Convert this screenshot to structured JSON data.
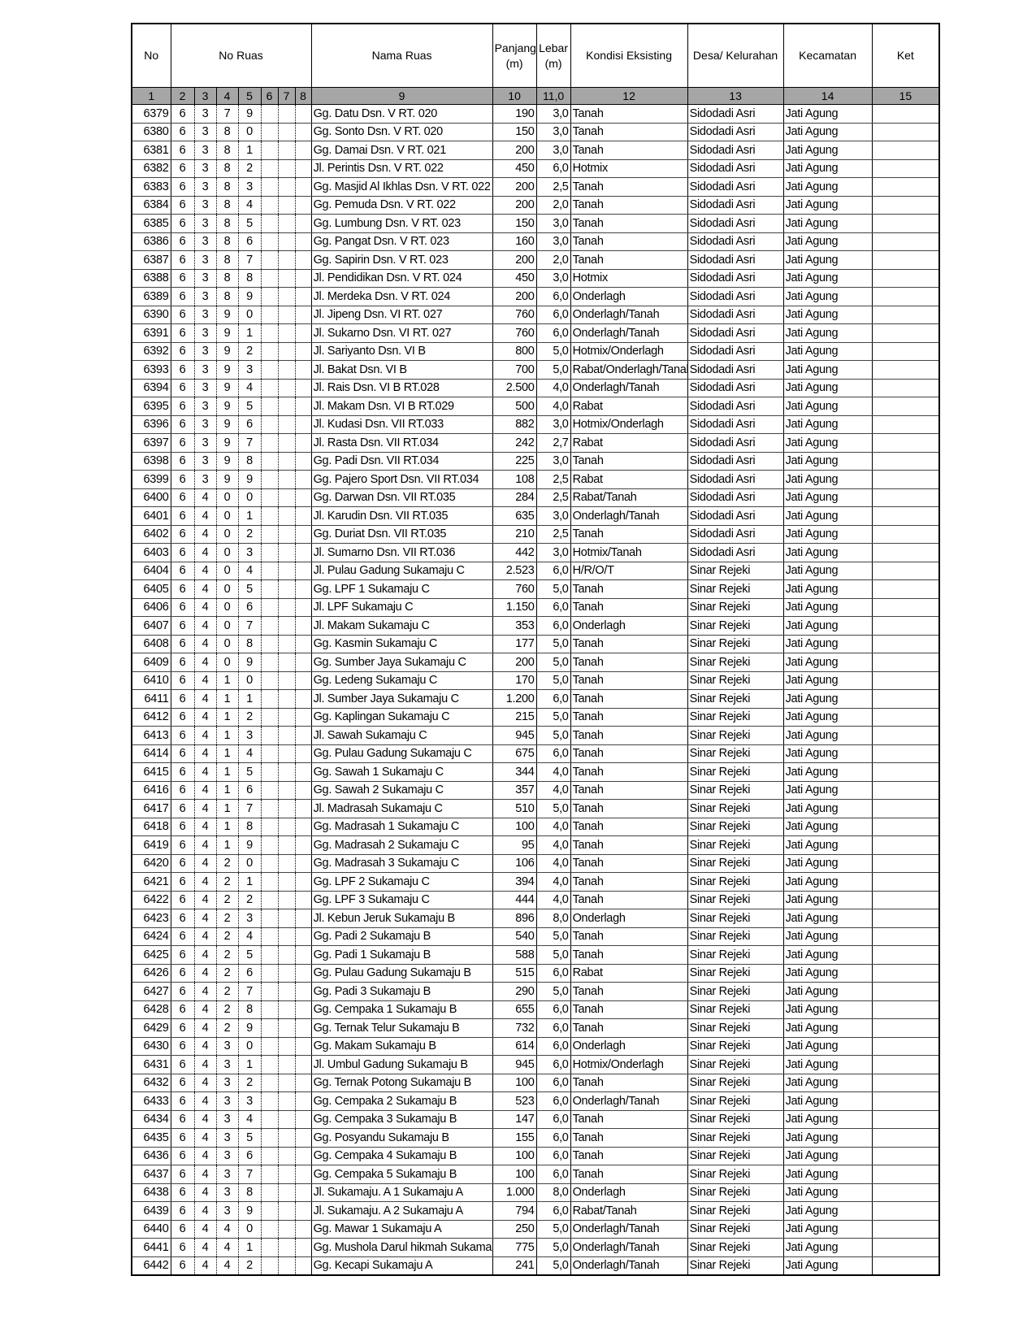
{
  "header": {
    "no": "No",
    "no_ruas": "No Ruas",
    "nama_ruas": "Nama Ruas",
    "panjang": "Panjang",
    "panjang_unit": "(m)",
    "lebar": "Lebar",
    "lebar_unit": "(m)",
    "kondisi": "Kondisi Eksisting",
    "desa": "Desa/ Kelurahan",
    "kecamatan": "Kecamatan",
    "ket": "Ket"
  },
  "column_numbers": [
    "1",
    "2",
    "3",
    "4",
    "5",
    "6",
    "7",
    "8",
    "9",
    "10",
    "11,0",
    "12",
    "13",
    "14",
    "15"
  ],
  "header_band_color": "#a6a6a6",
  "rows": [
    [
      "6379",
      "6379",
      "Gg. Datu  Dsn. V RT. 020",
      "190",
      "3,0",
      "Tanah",
      "Sidodadi Asri",
      "Jati Agung"
    ],
    [
      "6380",
      "6380",
      "Gg. Sonto  Dsn. V RT. 020",
      "150",
      "3,0",
      "Tanah",
      "Sidodadi Asri",
      "Jati Agung"
    ],
    [
      "6381",
      "6381",
      "Gg. Damai  Dsn. V RT. 021",
      "200",
      "3,0",
      "Tanah",
      "Sidodadi Asri",
      "Jati Agung"
    ],
    [
      "6382",
      "6382",
      "Jl. Perintis  Dsn. V RT. 022",
      "450",
      "6,0",
      "Hotmix",
      "Sidodadi Asri",
      "Jati Agung"
    ],
    [
      "6383",
      "6383",
      "Gg. Masjid Al Ikhlas  Dsn. V RT. 022",
      "200",
      "2,5",
      "Tanah",
      "Sidodadi Asri",
      "Jati Agung"
    ],
    [
      "6384",
      "6384",
      "Gg. Pemuda  Dsn. V RT. 022",
      "200",
      "2,0",
      "Tanah",
      "Sidodadi Asri",
      "Jati Agung"
    ],
    [
      "6385",
      "6385",
      "Gg. Lumbung  Dsn. V RT. 023",
      "150",
      "3,0",
      "Tanah",
      "Sidodadi Asri",
      "Jati Agung"
    ],
    [
      "6386",
      "6386",
      "Gg. Pangat  Dsn. V RT. 023",
      "160",
      "3,0",
      "Tanah",
      "Sidodadi Asri",
      "Jati Agung"
    ],
    [
      "6387",
      "6387",
      "Gg. Sapirin  Dsn. V RT. 023",
      "200",
      "2,0",
      "Tanah",
      "Sidodadi Asri",
      "Jati Agung"
    ],
    [
      "6388",
      "6388",
      "Jl. Pendidikan  Dsn. V RT. 024",
      "450",
      "3,0",
      "Hotmix",
      "Sidodadi Asri",
      "Jati Agung"
    ],
    [
      "6389",
      "6389",
      "Jl. Merdeka  Dsn. V RT. 024",
      "200",
      "6,0",
      "Onderlagh",
      "Sidodadi Asri",
      "Jati Agung"
    ],
    [
      "6390",
      "6390",
      "Jl. Jipeng  Dsn. VI RT. 027",
      "760",
      "6,0",
      "Onderlagh/Tanah",
      "Sidodadi Asri",
      "Jati Agung"
    ],
    [
      "6391",
      "6391",
      "Jl. Sukarno  Dsn. VI RT. 027",
      "760",
      "6,0",
      "Onderlagh/Tanah",
      "Sidodadi Asri",
      "Jati Agung"
    ],
    [
      "6392",
      "6392",
      "Jl. Sariyanto  Dsn. VI B",
      "800",
      "5,0",
      "Hotmix/Onderlagh",
      "Sidodadi Asri",
      "Jati Agung"
    ],
    [
      "6393",
      "6393",
      "Jl. Bakat  Dsn. VI B",
      "700",
      "5,0",
      "Rabat/Onderlagh/Tanah",
      "Sidodadi Asri",
      "Jati Agung"
    ],
    [
      "6394",
      "6394",
      "Jl. Rais  Dsn. VI B RT.028",
      "2.500",
      "4,0",
      "Onderlagh/Tanah",
      "Sidodadi Asri",
      "Jati Agung"
    ],
    [
      "6395",
      "6395",
      "Jl. Makam  Dsn. VI B RT.029",
      "500",
      "4,0",
      "Rabat",
      "Sidodadi Asri",
      "Jati Agung"
    ],
    [
      "6396",
      "6396",
      "Jl. Kudasi  Dsn. VII RT.033",
      "882",
      "3,0",
      "Hotmix/Onderlagh",
      "Sidodadi Asri",
      "Jati Agung"
    ],
    [
      "6397",
      "6397",
      "Jl. Rasta  Dsn. VII RT.034",
      "242",
      "2,7",
      "Rabat",
      "Sidodadi Asri",
      "Jati Agung"
    ],
    [
      "6398",
      "6398",
      "Gg. Padi  Dsn. VII RT.034",
      "225",
      "3,0",
      "Tanah",
      "Sidodadi Asri",
      "Jati Agung"
    ],
    [
      "6399",
      "6399",
      "Gg. Pajero Sport  Dsn. VII RT.034",
      "108",
      "2,5",
      "Rabat",
      "Sidodadi Asri",
      "Jati Agung"
    ],
    [
      "6400",
      "6400",
      "Gg. Darwan  Dsn. VII RT.035",
      "284",
      "2,5",
      "Rabat/Tanah",
      "Sidodadi Asri",
      "Jati Agung"
    ],
    [
      "6401",
      "6401",
      "Jl. Karudin  Dsn. VII RT.035",
      "635",
      "3,0",
      "Onderlagh/Tanah",
      "Sidodadi Asri",
      "Jati Agung"
    ],
    [
      "6402",
      "6402",
      "Gg. Duriat  Dsn. VII RT.035",
      "210",
      "2,5",
      "Tanah",
      "Sidodadi Asri",
      "Jati Agung"
    ],
    [
      "6403",
      "6403",
      "Jl. Sumarno  Dsn. VII RT.036",
      "442",
      "3,0",
      "Hotmix/Tanah",
      "Sidodadi Asri",
      "Jati Agung"
    ],
    [
      "6404",
      "6404",
      "Jl. Pulau Gadung   Sukamaju C",
      "2.523",
      "6,0",
      "H/R/O/T",
      "Sinar Rejeki",
      "Jati Agung"
    ],
    [
      "6405",
      "6405",
      "Gg. LPF 1  Sukamaju C",
      "760",
      "5,0",
      "Tanah",
      "Sinar Rejeki",
      "Jati Agung"
    ],
    [
      "6406",
      "6406",
      "Jl. LPF  Sukamaju C",
      "1.150",
      "6,0",
      "Tanah",
      "Sinar Rejeki",
      "Jati Agung"
    ],
    [
      "6407",
      "6407",
      "Jl. Makam  Sukamaju C",
      "353",
      "6,0",
      "Onderlagh",
      "Sinar Rejeki",
      "Jati Agung"
    ],
    [
      "6408",
      "6408",
      "Gg. Kasmin  Sukamaju C",
      "177",
      "5,0",
      "Tanah",
      "Sinar Rejeki",
      "Jati Agung"
    ],
    [
      "6409",
      "6409",
      "Gg. Sumber Jaya  Sukamaju C",
      "200",
      "5,0",
      "Tanah",
      "Sinar Rejeki",
      "Jati Agung"
    ],
    [
      "6410",
      "6410",
      "Gg. Ledeng  Sukamaju C",
      "170",
      "5,0",
      "Tanah",
      "Sinar Rejeki",
      "Jati Agung"
    ],
    [
      "6411",
      "6411",
      "Jl. Sumber Jaya  Sukamaju C",
      "1.200",
      "6,0",
      "Tanah",
      "Sinar Rejeki",
      "Jati Agung"
    ],
    [
      "6412",
      "6412",
      "Gg. Kaplingan  Sukamaju C",
      "215",
      "5,0",
      "Tanah",
      "Sinar Rejeki",
      "Jati Agung"
    ],
    [
      "6413",
      "6413",
      "Jl. Sawah  Sukamaju C",
      "945",
      "5,0",
      "Tanah",
      "Sinar Rejeki",
      "Jati Agung"
    ],
    [
      "6414",
      "6414",
      "Gg. Pulau Gadung  Sukamaju C",
      "675",
      "6,0",
      "Tanah",
      "Sinar Rejeki",
      "Jati Agung"
    ],
    [
      "6415",
      "6415",
      "Gg. Sawah 1  Sukamaju C",
      "344",
      "4,0",
      "Tanah",
      "Sinar Rejeki",
      "Jati Agung"
    ],
    [
      "6416",
      "6416",
      "Gg. Sawah 2  Sukamaju C",
      "357",
      "4,0",
      "Tanah",
      "Sinar Rejeki",
      "Jati Agung"
    ],
    [
      "6417",
      "6417",
      "Jl. Madrasah  Sukamaju C",
      "510",
      "5,0",
      "Tanah",
      "Sinar Rejeki",
      "Jati Agung"
    ],
    [
      "6418",
      "6418",
      "Gg. Madrasah 1  Sukamaju C",
      "100",
      "4,0",
      "Tanah",
      "Sinar Rejeki",
      "Jati Agung"
    ],
    [
      "6419",
      "6419",
      "Gg. Madrasah 2  Sukamaju C",
      "95",
      "4,0",
      "Tanah",
      "Sinar Rejeki",
      "Jati Agung"
    ],
    [
      "6420",
      "6420",
      "Gg. Madrasah 3  Sukamaju C",
      "106",
      "4,0",
      "Tanah",
      "Sinar Rejeki",
      "Jati Agung"
    ],
    [
      "6421",
      "6421",
      "Gg. LPF 2  Sukamaju C",
      "394",
      "4,0",
      "Tanah",
      "Sinar Rejeki",
      "Jati Agung"
    ],
    [
      "6422",
      "6422",
      "Gg. LPF 3  Sukamaju C",
      "444",
      "4,0",
      "Tanah",
      "Sinar Rejeki",
      "Jati Agung"
    ],
    [
      "6423",
      "6423",
      "Jl. Kebun Jeruk  Sukamaju B",
      "896",
      "8,0",
      "Onderlagh",
      "Sinar Rejeki",
      "Jati Agung"
    ],
    [
      "6424",
      "6424",
      "Gg. Padi 2  Sukamaju B",
      "540",
      "5,0",
      "Tanah",
      "Sinar Rejeki",
      "Jati Agung"
    ],
    [
      "6425",
      "6425",
      "Gg. Padi 1  Sukamaju B",
      "588",
      "5,0",
      "Tanah",
      "Sinar Rejeki",
      "Jati Agung"
    ],
    [
      "6426",
      "6426",
      "Gg. Pulau Gadung  Sukamaju B",
      "515",
      "6,0",
      "Rabat",
      "Sinar Rejeki",
      "Jati Agung"
    ],
    [
      "6427",
      "6427",
      "Gg. Padi 3  Sukamaju B",
      "290",
      "5,0",
      "Tanah",
      "Sinar Rejeki",
      "Jati Agung"
    ],
    [
      "6428",
      "6428",
      "Gg. Cempaka 1  Sukamaju B",
      "655",
      "6,0",
      "Tanah",
      "Sinar Rejeki",
      "Jati Agung"
    ],
    [
      "6429",
      "6429",
      "Gg. Ternak Telur  Sukamaju B",
      "732",
      "6,0",
      "Tanah",
      "Sinar Rejeki",
      "Jati Agung"
    ],
    [
      "6430",
      "6430",
      "Gg. Makam  Sukamaju B",
      "614",
      "6,0",
      "Onderlagh",
      "Sinar Rejeki",
      "Jati Agung"
    ],
    [
      "6431",
      "6431",
      "Jl. Umbul Gadung  Sukamaju B",
      "945",
      "6,0",
      "Hotmix/Onderlagh",
      "Sinar Rejeki",
      "Jati Agung"
    ],
    [
      "6432",
      "6432",
      "Gg. Ternak Potong  Sukamaju B",
      "100",
      "6,0",
      "Tanah",
      "Sinar Rejeki",
      "Jati Agung"
    ],
    [
      "6433",
      "6433",
      "Gg. Cempaka 2  Sukamaju B",
      "523",
      "6,0",
      "Onderlagh/Tanah",
      "Sinar Rejeki",
      "Jati Agung"
    ],
    [
      "6434",
      "6434",
      "Gg. Cempaka 3  Sukamaju B",
      "147",
      "6,0",
      "Tanah",
      "Sinar Rejeki",
      "Jati Agung"
    ],
    [
      "6435",
      "6435",
      "Gg. Posyandu  Sukamaju B",
      "155",
      "6,0",
      "Tanah",
      "Sinar Rejeki",
      "Jati Agung"
    ],
    [
      "6436",
      "6436",
      "Gg. Cempaka 4  Sukamaju B",
      "100",
      "6,0",
      "Tanah",
      "Sinar Rejeki",
      "Jati Agung"
    ],
    [
      "6437",
      "6437",
      "Gg. Cempaka 5  Sukamaju B",
      "100",
      "6,0",
      "Tanah",
      "Sinar Rejeki",
      "Jati Agung"
    ],
    [
      "6438",
      "6438",
      "Jl. Sukamaju. A 1  Sukamaju A",
      "1.000",
      "8,0",
      "Onderlagh",
      "Sinar Rejeki",
      "Jati Agung"
    ],
    [
      "6439",
      "6439",
      "Jl. Sukamaju. A 2  Sukamaju A",
      "794",
      "6,0",
      "Rabat/Tanah",
      "Sinar Rejeki",
      "Jati Agung"
    ],
    [
      "6440",
      "6440",
      "Gg. Mawar 1  Sukamaju A",
      "250",
      "5,0",
      "Onderlagh/Tanah",
      "Sinar Rejeki",
      "Jati Agung"
    ],
    [
      "6441",
      "6441",
      "Gg. Mushola Darul hikmah  Sukama",
      "775",
      "5,0",
      "Onderlagh/Tanah",
      "Sinar Rejeki",
      "Jati Agung"
    ],
    [
      "6442",
      "6442",
      "Gg. Kecapi  Sukamaju A",
      "241",
      "5,0",
      "Onderlagh/Tanah",
      "Sinar Rejeki",
      "Jati Agung"
    ]
  ]
}
